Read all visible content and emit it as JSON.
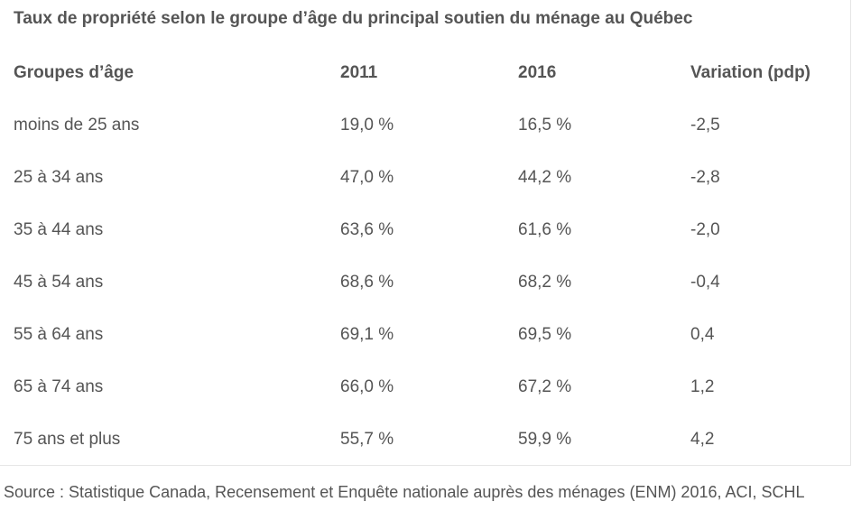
{
  "title": "Taux de propriété selon le groupe d’âge du principal soutien du ménage au Québec",
  "columns": [
    "Groupes d’âge",
    "2011",
    "2016",
    "Variation (pdp)"
  ],
  "rows": [
    [
      "moins de 25 ans",
      "19,0 %",
      "16,5 %",
      "-2,5"
    ],
    [
      "25 à 34 ans",
      "47,0 %",
      "44,2 %",
      "-2,8"
    ],
    [
      "35 à 44 ans",
      "63,6 %",
      "61,6 %",
      "-2,0"
    ],
    [
      "45 à 54 ans",
      "68,6 %",
      "68,2 %",
      "-0,4"
    ],
    [
      "55 à 64 ans",
      "69,1 %",
      "69,5 %",
      "0,4"
    ],
    [
      "65 à 74 ans",
      "66,0 %",
      "67,2 %",
      "1,2"
    ],
    [
      "75 ans et plus",
      "55,7 %",
      "59,9 %",
      "4,2"
    ]
  ],
  "source": "Source : Statistique Canada, Recensement et Enquête nationale auprès des ménages (ENM) 2016, ACI, SCHL"
}
